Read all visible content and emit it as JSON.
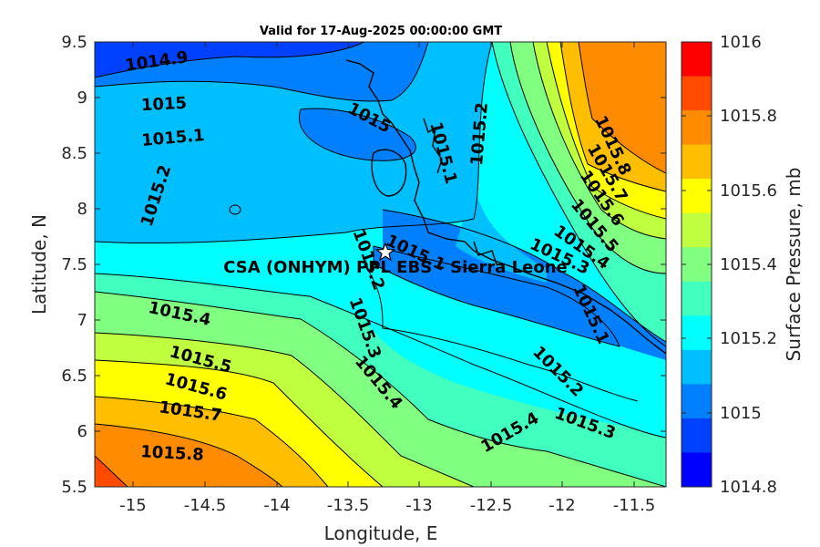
{
  "title": "Valid for 17-Aug-2025 00:00:00 GMT",
  "x_axis": {
    "label": "Longitude, E",
    "ticks": [
      "-15",
      "-14.5",
      "-14",
      "-13.5",
      "-13",
      "-12.5",
      "-12",
      "-11.5"
    ]
  },
  "y_axis": {
    "label": "Latitude, N",
    "ticks": [
      "9.5",
      "9",
      "8.5",
      "8",
      "7.5",
      "7",
      "6.5",
      "6",
      "5.5"
    ]
  },
  "colorbar": {
    "label": "Surface Pressure, mb",
    "ticks": [
      "1016",
      "1015.8",
      "1015.6",
      "1015.4",
      "1015.2",
      "1015",
      "1014.8"
    ],
    "colors": [
      "#ff0000",
      "#ff4a00",
      "#ff8c00",
      "#ffbf00",
      "#ffff00",
      "#bfff3f",
      "#80ff80",
      "#40ffbf",
      "#00ffff",
      "#00bfff",
      "#0080ff",
      "#0040ff",
      "#0000ff"
    ]
  },
  "site": {
    "label": "CSA (ONHYM) PPL EBS  - Sierra Leone",
    "marker": "star-icon"
  },
  "contour_labels": [
    {
      "text": "1014.9"
    },
    {
      "text": "1015"
    },
    {
      "text": "1015.1"
    },
    {
      "text": "1015.2"
    },
    {
      "text": "1015"
    },
    {
      "text": "1015.1"
    },
    {
      "text": "1015.2"
    },
    {
      "text": "1015.8"
    },
    {
      "text": "1015.7"
    },
    {
      "text": "1015.6"
    },
    {
      "text": "1015.5"
    },
    {
      "text": "1015.4"
    },
    {
      "text": "1015.3"
    },
    {
      "text": "1015.1"
    },
    {
      "text": "1015.1"
    },
    {
      "text": "1015.2"
    },
    {
      "text": "1015.3"
    },
    {
      "text": "1015.4"
    },
    {
      "text": "1015.4"
    },
    {
      "text": "1015.5"
    },
    {
      "text": "1015.6"
    },
    {
      "text": "1015.7"
    },
    {
      "text": "1015.8"
    },
    {
      "text": "1015.2"
    },
    {
      "text": "1015.3"
    },
    {
      "text": "1015.4"
    }
  ]
}
